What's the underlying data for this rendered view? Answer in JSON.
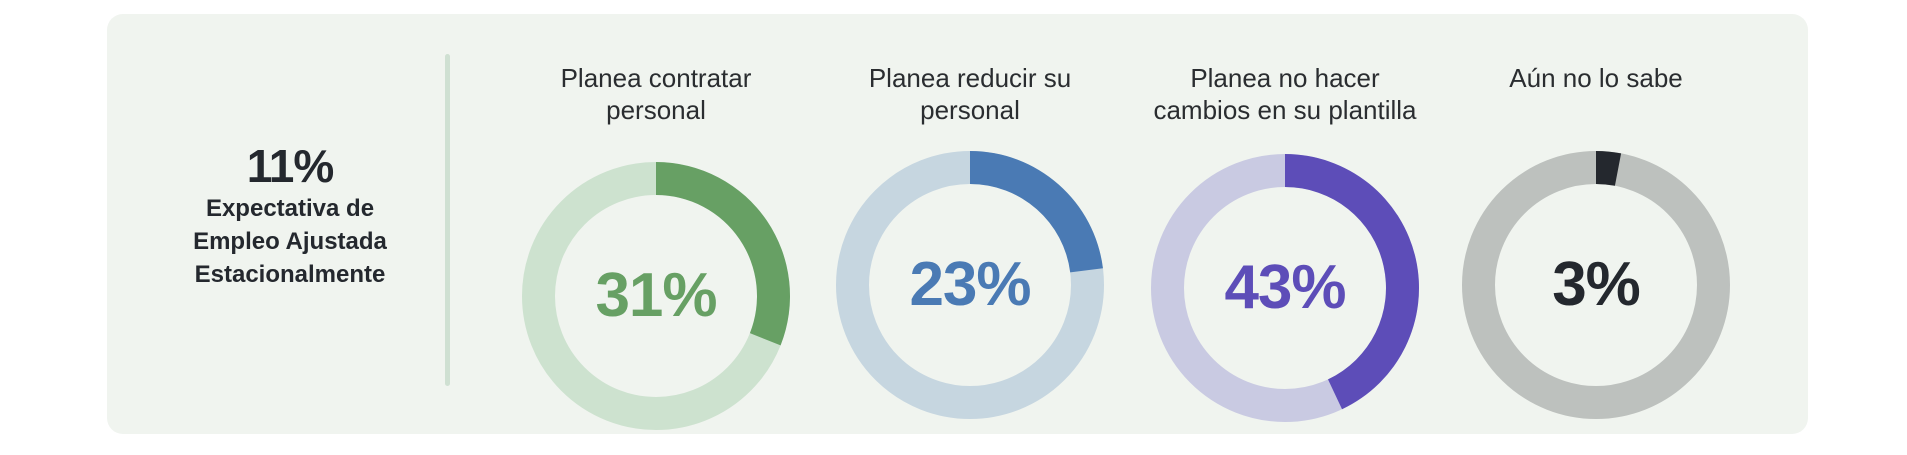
{
  "summary": {
    "value": "11%",
    "label_lines": [
      "Expectativa de",
      "Empleo Ajustada",
      "Estacionalmente"
    ]
  },
  "colors": {
    "card_background": "#f0f4ef",
    "divider": "#cfe0d2",
    "text_dark": "#24282e",
    "hire": "#67a064",
    "hire_track": "#cde2cf",
    "reduce": "#4a7ab4",
    "reduce_track": "#c6d6e0",
    "no_change": "#5d4db8",
    "no_change_track": "#c9cae2",
    "unknown": "#24282e",
    "unknown_track": "#bdc1be"
  },
  "donuts": [
    {
      "title_lines": [
        "Planea contratar",
        "personal"
      ],
      "value_label": "31%",
      "percent": 31,
      "color": "#67a064",
      "track": "#cde2cf",
      "value_color": "#67a064"
    },
    {
      "title_lines": [
        "Planea reducir su",
        "personal"
      ],
      "value_label": "23%",
      "percent": 23,
      "color": "#4a7ab4",
      "track": "#c6d6e0",
      "value_color": "#4a7ab4"
    },
    {
      "title_lines": [
        "Planea no hacer",
        "cambios en su plantilla"
      ],
      "value_label": "43%",
      "percent": 43,
      "color": "#5d4db8",
      "track": "#c9cae2",
      "value_color": "#5d4db8"
    },
    {
      "title_lines": [
        "Aún no lo sabe"
      ],
      "value_label": "3%",
      "percent": 3,
      "color": "#24282e",
      "track": "#bdc1be",
      "value_color": "#24282e"
    }
  ],
  "chart_data": {
    "type": "pie",
    "title": "Expectativa de Empleo Ajustada Estacionalmente: 11%",
    "categories": [
      "Planea contratar personal",
      "Planea reducir su personal",
      "Planea no hacer cambios en su plantilla",
      "Aún no lo sabe"
    ],
    "values": [
      31,
      23,
      43,
      3
    ],
    "unit": "%",
    "style": "four separate donut gauges, arc starting at 12 o'clock clockwise",
    "headline_metric": {
      "label": "Expectativa de Empleo Ajustada Estacionalmente",
      "value": 11
    }
  }
}
